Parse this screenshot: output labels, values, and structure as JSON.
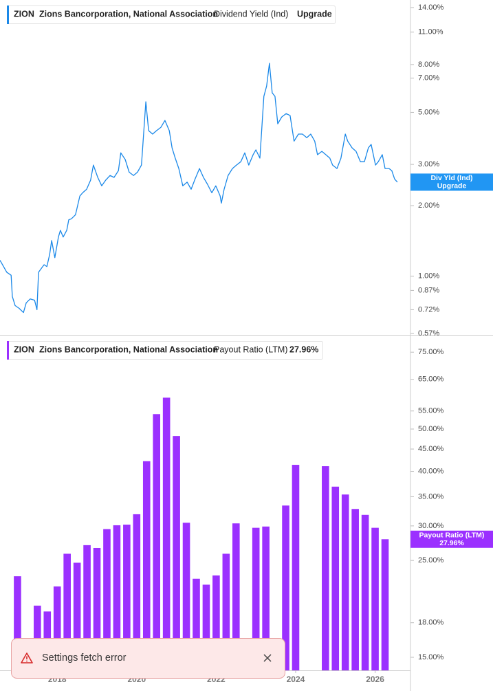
{
  "chart_data": [
    {
      "type": "line",
      "ticker": "ZION",
      "company": "Zions Bancorporation, National Association",
      "title": "Dividend Yield (Ind)",
      "upgrade_label": "Upgrade",
      "log_scale": true,
      "xlim": [
        2016.56,
        2026.89
      ],
      "ylim": [
        0.57,
        14
      ],
      "yticks": [
        {
          "value": 14,
          "label": "14.00%"
        },
        {
          "value": 11,
          "label": "11.00%"
        },
        {
          "value": 8,
          "label": "8.00%"
        },
        {
          "value": 7,
          "label": "7.00%"
        },
        {
          "value": 5,
          "label": "5.00%"
        },
        {
          "value": 3,
          "label": "3.00%"
        },
        {
          "value": 2,
          "label": "2.00%"
        },
        {
          "value": 1,
          "label": "1.00%"
        },
        {
          "value": 0.87,
          "label": "0.87%"
        },
        {
          "value": 0.72,
          "label": "0.72%"
        },
        {
          "value": 0.57,
          "label": "0.57%"
        }
      ],
      "x": [
        2016.56,
        2016.73,
        2016.84,
        2016.87,
        2016.94,
        2017.04,
        2017.15,
        2017.22,
        2017.32,
        2017.43,
        2017.49,
        2017.53,
        2017.6,
        2017.67,
        2017.74,
        2017.81,
        2017.86,
        2017.94,
        2018.03,
        2018.08,
        2018.15,
        2018.24,
        2018.29,
        2018.36,
        2018.46,
        2018.57,
        2018.64,
        2018.74,
        2018.84,
        2018.91,
        2019.02,
        2019.12,
        2019.22,
        2019.33,
        2019.43,
        2019.54,
        2019.6,
        2019.71,
        2019.81,
        2019.92,
        2020.02,
        2020.12,
        2020.23,
        2020.3,
        2020.4,
        2020.5,
        2020.61,
        2020.71,
        2020.82,
        2020.89,
        2020.97,
        2021.06,
        2021.16,
        2021.27,
        2021.37,
        2021.47,
        2021.58,
        2021.68,
        2021.78,
        2021.89,
        2021.99,
        2022.1,
        2022.13,
        2022.2,
        2022.3,
        2022.41,
        2022.51,
        2022.62,
        2022.72,
        2022.82,
        2022.93,
        2023.0,
        2023.1,
        2023.2,
        2023.27,
        2023.34,
        2023.41,
        2023.48,
        2023.55,
        2023.65,
        2023.76,
        2023.86,
        2023.96,
        2024.07,
        2024.17,
        2024.28,
        2024.38,
        2024.48,
        2024.55,
        2024.66,
        2024.76,
        2024.86,
        2024.93,
        2025.04,
        2025.14,
        2025.25,
        2025.31,
        2025.42,
        2025.52,
        2025.63,
        2025.73,
        2025.83,
        2025.9,
        2026.01,
        2026.08,
        2026.18,
        2026.25,
        2026.35,
        2026.42,
        2026.49,
        2026.56
      ],
      "series": [
        {
          "name": "Div Yld (Ind)",
          "color": "#1a88e8",
          "values": [
            1.17,
            1.04,
            1.01,
            0.82,
            0.75,
            0.73,
            0.7,
            0.77,
            0.8,
            0.79,
            0.72,
            1.04,
            1.08,
            1.12,
            1.1,
            1.24,
            1.42,
            1.2,
            1.47,
            1.57,
            1.47,
            1.57,
            1.74,
            1.76,
            1.83,
            2.2,
            2.27,
            2.35,
            2.57,
            2.98,
            2.64,
            2.43,
            2.57,
            2.69,
            2.64,
            2.82,
            3.36,
            3.15,
            2.78,
            2.69,
            2.78,
            2.98,
            5.55,
            4.18,
            4.04,
            4.18,
            4.32,
            4.62,
            4.18,
            3.53,
            3.19,
            2.88,
            2.43,
            2.52,
            2.35,
            2.6,
            2.88,
            2.64,
            2.47,
            2.27,
            2.43,
            2.2,
            2.05,
            2.35,
            2.69,
            2.88,
            2.98,
            3.08,
            3.36,
            2.98,
            3.3,
            3.46,
            3.19,
            5.85,
            6.48,
            8.1,
            6.06,
            5.85,
            4.47,
            4.78,
            4.94,
            4.85,
            3.77,
            4.04,
            4.04,
            3.9,
            4.04,
            3.77,
            3.3,
            3.41,
            3.3,
            3.19,
            2.98,
            2.88,
            3.19,
            4.04,
            3.77,
            3.53,
            3.41,
            3.08,
            3.08,
            3.53,
            3.65,
            2.98,
            3.08,
            3.3,
            2.88,
            2.88,
            2.82,
            2.6,
            2.52
          ]
        }
      ]
    },
    {
      "type": "bar",
      "ticker": "ZION",
      "company": "Zions Bancorporation, National Association",
      "log_scale": true,
      "xlim": [
        2016.56,
        2026.89
      ],
      "ylim": [
        14,
        81
      ],
      "xticks": [
        2018,
        2020,
        2022,
        2024,
        2026
      ],
      "yticks": [
        {
          "value": 75,
          "label": "75.00%"
        },
        {
          "value": 65,
          "label": "65.00%"
        },
        {
          "value": 55,
          "label": "55.00%"
        },
        {
          "value": 50,
          "label": "50.00%"
        },
        {
          "value": 45,
          "label": "45.00%"
        },
        {
          "value": 40,
          "label": "40.00%"
        },
        {
          "value": 35,
          "label": "35.00%"
        },
        {
          "value": 30,
          "label": "30.00%"
        },
        {
          "value": 25,
          "label": "25.00%"
        },
        {
          "value": 18,
          "label": "18.00%"
        },
        {
          "value": 15,
          "label": "15.00%"
        }
      ],
      "x": [
        2017,
        2017.25,
        2017.5,
        2017.75,
        2018,
        2018.25,
        2018.5,
        2018.75,
        2019,
        2019.25,
        2019.5,
        2019.75,
        2020,
        2020.25,
        2020.5,
        2020.75,
        2021,
        2021.25,
        2021.5,
        2021.75,
        2022,
        2022.25,
        2022.5,
        2022.75,
        2023,
        2023.25,
        2023.5,
        2023.75,
        2024,
        2024.25,
        2024.5,
        2024.75,
        2025,
        2025.25,
        2025.5,
        2025.75,
        2026,
        2026.25
      ],
      "series": [
        {
          "name": "Payout Ratio (LTM)",
          "color": "#9b30ff",
          "values": [
            23.0,
            null,
            19.7,
            19.1,
            21.8,
            25.9,
            24.7,
            27.1,
            26.7,
            29.5,
            30.1,
            30.2,
            31.9,
            42.2,
            54.1,
            59.0,
            48.2,
            30.5,
            22.7,
            22.0,
            23.1,
            25.9,
            30.4,
            null,
            29.7,
            29.9,
            null,
            33.4,
            41.4,
            null,
            null,
            41.1,
            36.9,
            35.4,
            32.8,
            31.8,
            29.7,
            27.96
          ],
          "value_labels": [
            null,
            null,
            null,
            null,
            null,
            null,
            null,
            null,
            null,
            null,
            null,
            null,
            null,
            null,
            null,
            null,
            null,
            null,
            null,
            null,
            null,
            null,
            null,
            null,
            null,
            null,
            null,
            null,
            null,
            null,
            null,
            null,
            null,
            null,
            null,
            null,
            null,
            "27.96%"
          ]
        }
      ]
    }
  ],
  "toast": {
    "message": "Settings fetch error"
  }
}
